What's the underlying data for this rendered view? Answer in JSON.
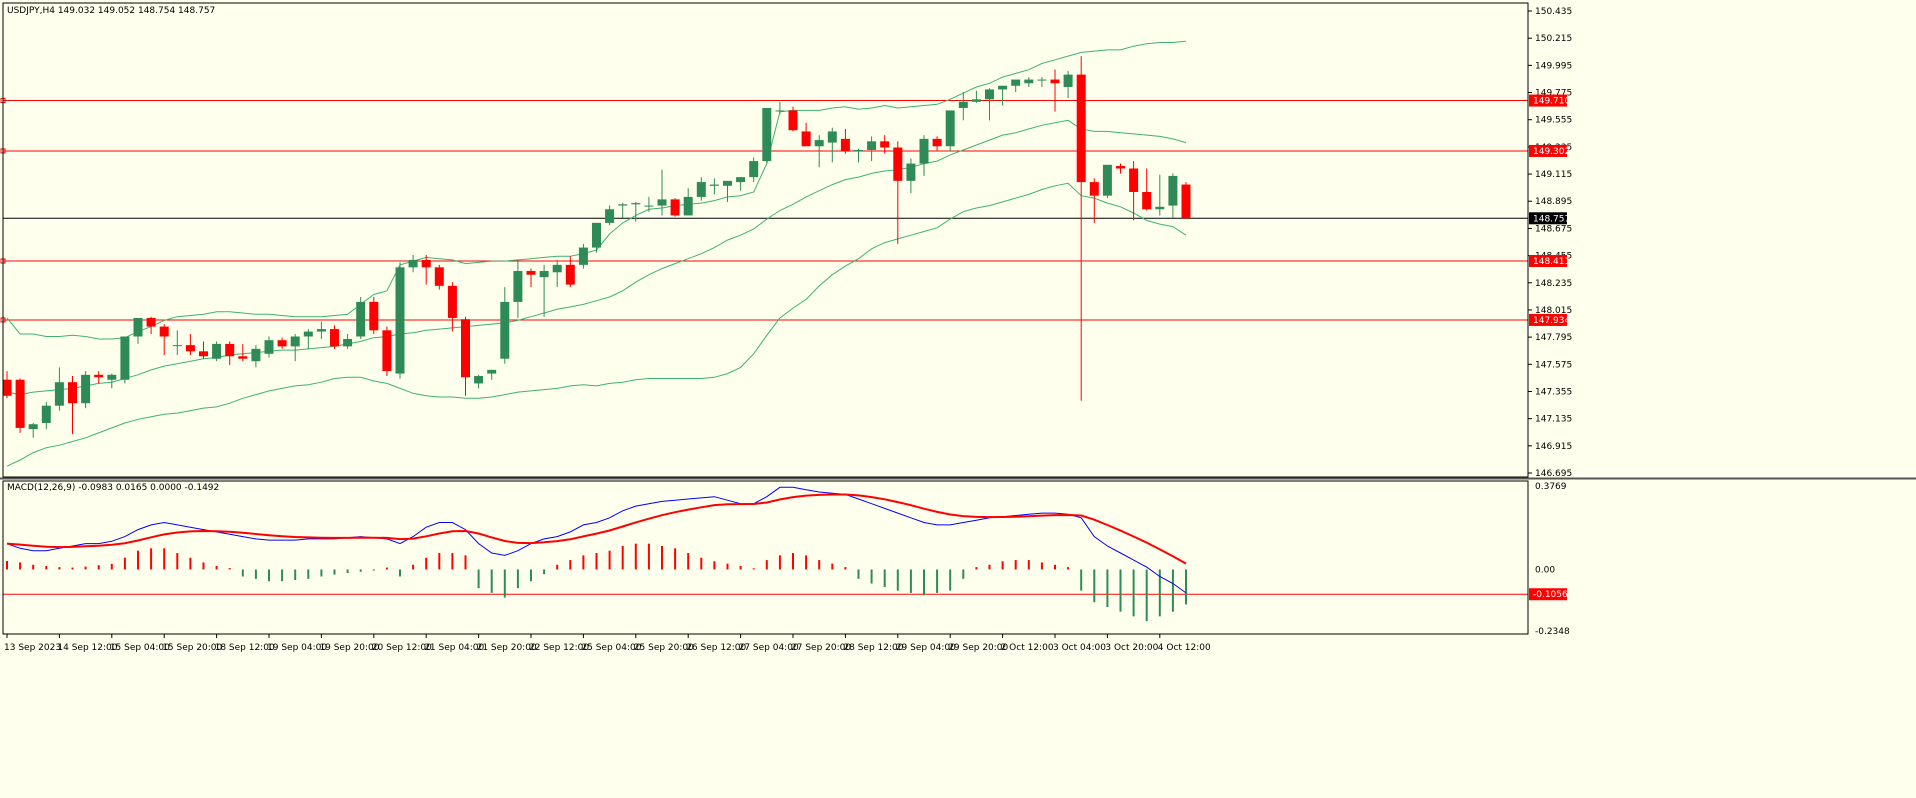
{
  "colors": {
    "background": "#ffffee",
    "axis": "#000000",
    "grid_text": "#000000",
    "bull": "#2e8b57",
    "bear": "#ff0000",
    "bands": "#3cb371",
    "level_line": "#ff0000",
    "price_line": "#000000",
    "macd_line": "#0000ff",
    "signal_line": "#ff0000",
    "label_bg": "#ff0000",
    "price_label_bg": "#000000",
    "label_text": "#ffffff"
  },
  "chart_data": [
    {
      "type": "candlestick",
      "title": "USDJPY,H4  149.032 149.052 148.754 148.757",
      "ylim": [
        146.695,
        150.435
      ],
      "y_ticks": [
        150.435,
        150.215,
        149.995,
        149.775,
        149.555,
        149.335,
        149.115,
        148.895,
        148.675,
        148.455,
        148.235,
        148.015,
        147.795,
        147.575,
        147.355,
        147.135,
        146.915,
        146.695
      ],
      "y_tick_labels": [
        "150.435",
        "150.215",
        "149.995",
        "149.775",
        "149.555",
        "149.335",
        "149.115",
        "148.895",
        "148.675",
        "148.455",
        "148.235",
        "148.015",
        "147.795",
        "147.575",
        "147.355",
        "147.135",
        "146.915",
        "146.695"
      ],
      "horizontal_levels": [
        {
          "label": "149.710",
          "value": 149.71
        },
        {
          "label": "149.302",
          "value": 149.302
        },
        {
          "label": "148.411",
          "value": 148.411
        },
        {
          "label": "147.934",
          "value": 147.934
        }
      ],
      "current_price": {
        "label": "148.757",
        "value": 148.757
      },
      "x_labels": [
        "13 Sep 2023",
        "14 Sep 12:00",
        "15 Sep 04:00",
        "15 Sep 20:00",
        "18 Sep 12:00",
        "19 Sep 04:00",
        "19 Sep 20:00",
        "20 Sep 12:00",
        "21 Sep 04:00",
        "21 Sep 20:00",
        "22 Sep 12:00",
        "25 Sep 04:00",
        "25 Sep 20:00",
        "26 Sep 12:00",
        "27 Sep 04:00",
        "27 Sep 20:00",
        "28 Sep 12:00",
        "29 Sep 04:00",
        "29 Sep 20:00",
        "2 Oct 12:00",
        "3 Oct 04:00",
        "3 Oct 20:00",
        "4 Oct 12:00"
      ],
      "candles": [
        [
          147.45,
          147.52,
          147.3,
          147.32
        ],
        [
          147.45,
          147.46,
          147.02,
          147.06
        ],
        [
          147.05,
          147.1,
          146.98,
          147.09
        ],
        [
          147.1,
          147.27,
          147.05,
          147.24
        ],
        [
          147.24,
          147.55,
          147.2,
          147.43
        ],
        [
          147.43,
          147.48,
          147.01,
          147.26
        ],
        [
          147.26,
          147.52,
          147.22,
          147.49
        ],
        [
          147.49,
          147.52,
          147.42,
          147.47
        ],
        [
          147.45,
          147.5,
          147.38,
          147.49
        ],
        [
          147.45,
          147.8,
          147.42,
          147.8
        ],
        [
          147.8,
          147.95,
          147.74,
          147.95
        ],
        [
          147.95,
          147.96,
          147.82,
          147.88
        ],
        [
          147.88,
          147.9,
          147.65,
          147.8
        ],
        [
          147.73,
          147.85,
          147.65,
          147.73
        ],
        [
          147.73,
          147.82,
          147.65,
          147.68
        ],
        [
          147.68,
          147.76,
          147.62,
          147.64
        ],
        [
          147.62,
          147.76,
          147.6,
          147.74
        ],
        [
          147.74,
          147.76,
          147.57,
          147.64
        ],
        [
          147.64,
          147.74,
          147.6,
          147.62
        ],
        [
          147.6,
          147.73,
          147.55,
          147.7
        ],
        [
          147.66,
          147.8,
          147.63,
          147.77
        ],
        [
          147.77,
          147.79,
          147.7,
          147.72
        ],
        [
          147.72,
          147.82,
          147.6,
          147.8
        ],
        [
          147.8,
          147.86,
          147.7,
          147.84
        ],
        [
          147.84,
          147.92,
          147.78,
          147.86
        ],
        [
          147.86,
          147.89,
          147.7,
          147.72
        ],
        [
          147.72,
          147.82,
          147.7,
          147.78
        ],
        [
          147.8,
          148.12,
          147.78,
          148.08
        ],
        [
          148.08,
          148.12,
          147.82,
          147.85
        ],
        [
          147.85,
          147.88,
          147.48,
          147.52
        ],
        [
          147.5,
          148.4,
          147.46,
          148.36
        ],
        [
          148.36,
          148.46,
          148.32,
          148.42
        ],
        [
          148.42,
          148.46,
          148.22,
          148.36
        ],
        [
          148.36,
          148.38,
          148.18,
          148.21
        ],
        [
          148.21,
          148.24,
          147.84,
          147.95
        ],
        [
          147.94,
          147.96,
          147.32,
          147.47
        ],
        [
          147.42,
          147.49,
          147.38,
          147.48
        ],
        [
          147.5,
          147.53,
          147.45,
          147.53
        ],
        [
          147.62,
          148.2,
          147.58,
          148.08
        ],
        [
          148.08,
          148.41,
          147.95,
          148.33
        ],
        [
          148.33,
          148.35,
          148.2,
          148.3
        ],
        [
          148.28,
          148.38,
          147.96,
          148.33
        ],
        [
          148.32,
          148.42,
          148.2,
          148.38
        ],
        [
          148.38,
          148.45,
          148.2,
          148.22
        ],
        [
          148.38,
          148.55,
          148.35,
          148.52
        ],
        [
          148.52,
          148.72,
          148.48,
          148.72
        ],
        [
          148.72,
          148.86,
          148.7,
          148.83
        ],
        [
          148.86,
          148.88,
          148.76,
          148.87
        ],
        [
          148.87,
          148.89,
          148.73,
          148.88
        ],
        [
          148.86,
          148.93,
          148.81,
          148.86
        ],
        [
          148.86,
          149.15,
          148.78,
          148.91
        ],
        [
          148.91,
          148.92,
          148.77,
          148.78
        ],
        [
          148.78,
          149.0,
          148.78,
          148.93
        ],
        [
          148.93,
          149.09,
          148.9,
          149.05
        ],
        [
          149.02,
          149.08,
          148.95,
          149.03
        ],
        [
          149.02,
          149.06,
          148.89,
          149.06
        ],
        [
          149.05,
          149.09,
          148.98,
          149.09
        ],
        [
          149.09,
          149.25,
          149.05,
          149.22
        ],
        [
          149.22,
          149.65,
          149.2,
          149.65
        ],
        [
          149.63,
          149.7,
          149.6,
          149.63
        ],
        [
          149.63,
          149.66,
          149.46,
          149.47
        ],
        [
          149.46,
          149.53,
          149.36,
          149.34
        ],
        [
          149.34,
          149.43,
          149.17,
          149.39
        ],
        [
          149.37,
          149.49,
          149.21,
          149.46
        ],
        [
          149.4,
          149.48,
          149.28,
          149.3
        ],
        [
          149.3,
          149.32,
          149.21,
          149.31
        ],
        [
          149.31,
          149.42,
          149.22,
          149.38
        ],
        [
          149.38,
          149.43,
          149.28,
          149.33
        ],
        [
          149.33,
          149.38,
          148.55,
          149.06
        ],
        [
          149.06,
          149.24,
          148.96,
          149.2
        ],
        [
          149.2,
          149.43,
          149.1,
          149.4
        ],
        [
          149.4,
          149.42,
          149.3,
          149.34
        ],
        [
          149.34,
          149.6,
          149.3,
          149.63
        ],
        [
          149.65,
          149.78,
          149.55,
          149.7
        ],
        [
          149.7,
          149.79,
          149.69,
          149.72
        ],
        [
          149.72,
          149.81,
          149.55,
          149.8
        ],
        [
          149.8,
          149.82,
          149.67,
          149.83
        ],
        [
          149.83,
          149.86,
          149.78,
          149.88
        ],
        [
          149.85,
          149.9,
          149.82,
          149.88
        ],
        [
          149.88,
          149.9,
          149.82,
          149.88
        ],
        [
          149.88,
          149.96,
          149.62,
          149.85
        ],
        [
          149.82,
          149.95,
          149.73,
          149.92
        ],
        [
          149.92,
          150.07,
          147.28,
          149.05
        ],
        [
          149.05,
          149.08,
          148.72,
          148.94
        ],
        [
          148.94,
          149.18,
          148.92,
          149.19
        ],
        [
          149.18,
          149.2,
          149.12,
          149.16
        ],
        [
          149.16,
          149.22,
          148.74,
          148.97
        ],
        [
          148.97,
          149.16,
          148.82,
          148.83
        ],
        [
          148.83,
          149.11,
          148.78,
          148.85
        ],
        [
          148.86,
          149.12,
          148.76,
          149.1
        ],
        [
          149.03,
          149.05,
          148.75,
          148.757
        ]
      ],
      "bollinger": {
        "upper": [
          147.95,
          147.82,
          147.82,
          147.8,
          147.8,
          147.81,
          147.8,
          147.78,
          147.78,
          147.79,
          147.84,
          147.88,
          147.93,
          147.96,
          147.97,
          147.98,
          148.0,
          148.0,
          147.99,
          147.98,
          147.98,
          147.97,
          147.96,
          147.96,
          147.96,
          147.97,
          147.98,
          148.06,
          148.14,
          148.17,
          148.38,
          148.41,
          148.44,
          148.43,
          148.42,
          148.39,
          148.4,
          148.41,
          148.41,
          148.42,
          148.43,
          148.44,
          148.45,
          148.45,
          148.47,
          148.5,
          148.63,
          148.72,
          148.78,
          148.83,
          148.84,
          148.86,
          148.87,
          148.88,
          148.9,
          148.93,
          148.94,
          148.97,
          149.2,
          149.62,
          149.63,
          149.63,
          149.63,
          149.65,
          149.66,
          149.64,
          149.65,
          149.67,
          149.65,
          149.66,
          149.67,
          149.68,
          149.72,
          149.77,
          149.82,
          149.85,
          149.9,
          149.93,
          149.96,
          150.01,
          150.04,
          150.07,
          150.1,
          150.11,
          150.12,
          150.12,
          150.15,
          150.17,
          150.18,
          150.18,
          150.19
        ],
        "middle": [
          147.35,
          147.33,
          147.35,
          147.36,
          147.37,
          147.38,
          147.4,
          147.42,
          147.43,
          147.46,
          147.49,
          147.53,
          147.56,
          147.58,
          147.6,
          147.62,
          147.63,
          147.65,
          147.66,
          147.67,
          147.68,
          147.69,
          147.69,
          147.7,
          147.71,
          147.72,
          147.74,
          147.76,
          147.79,
          147.8,
          147.82,
          147.83,
          147.85,
          147.86,
          147.87,
          147.88,
          147.89,
          147.9,
          147.91,
          147.93,
          147.96,
          147.99,
          148.02,
          148.04,
          148.06,
          148.09,
          148.12,
          148.17,
          148.24,
          148.3,
          148.35,
          148.39,
          148.43,
          148.47,
          148.52,
          148.58,
          148.62,
          148.67,
          148.75,
          148.82,
          148.87,
          148.93,
          148.98,
          149.03,
          149.07,
          149.09,
          149.12,
          149.14,
          149.15,
          149.17,
          149.2,
          149.22,
          149.27,
          149.31,
          149.35,
          149.39,
          149.43,
          149.45,
          149.48,
          149.51,
          149.53,
          149.55,
          149.48,
          149.46,
          149.46,
          149.45,
          149.44,
          149.43,
          149.42,
          149.4,
          149.37
        ],
        "lower": [
          146.75,
          146.8,
          146.86,
          146.9,
          146.92,
          146.95,
          146.98,
          147.02,
          147.06,
          147.1,
          147.13,
          147.15,
          147.17,
          147.18,
          147.2,
          147.22,
          147.23,
          147.26,
          147.3,
          147.33,
          147.36,
          147.38,
          147.4,
          147.41,
          147.43,
          147.46,
          147.47,
          147.47,
          147.44,
          147.42,
          147.38,
          147.34,
          147.32,
          147.31,
          147.31,
          147.3,
          147.3,
          147.31,
          147.33,
          147.35,
          147.36,
          147.37,
          147.38,
          147.4,
          147.41,
          147.4,
          147.42,
          147.43,
          147.45,
          147.46,
          147.46,
          147.46,
          147.46,
          147.46,
          147.47,
          147.5,
          147.55,
          147.66,
          147.81,
          147.95,
          148.03,
          148.1,
          148.21,
          148.3,
          148.37,
          148.43,
          148.51,
          148.56,
          148.59,
          148.62,
          148.65,
          148.68,
          148.75,
          148.81,
          148.84,
          148.86,
          148.89,
          148.92,
          148.95,
          148.99,
          149.02,
          149.04,
          148.94,
          148.92,
          148.88,
          148.85,
          148.8,
          148.74,
          148.71,
          148.69,
          148.62
        ]
      }
    },
    {
      "type": "macd",
      "title": "MACD(12,26,9) -0.0983 0.0165 0.0000 -0.1492",
      "ylim": [
        -0.275,
        0.3769
      ],
      "y_ticks": [
        0.3769,
        0.0,
        -0.2348
      ],
      "y_tick_labels": [
        "0.3769",
        "0.00",
        "-0.2348"
      ],
      "level": {
        "label": "-0.1056",
        "value": -0.1056
      },
      "histogram": [
        0.036,
        0.03,
        0.02,
        0.015,
        0.01,
        0.008,
        0.012,
        0.018,
        0.024,
        0.05,
        0.08,
        0.09,
        0.09,
        0.07,
        0.05,
        0.03,
        0.015,
        0.006,
        -0.03,
        -0.04,
        -0.05,
        -0.05,
        -0.045,
        -0.04,
        -0.03,
        -0.022,
        -0.015,
        -0.01,
        -0.005,
        0.008,
        -0.03,
        0.02,
        0.05,
        0.07,
        0.07,
        0.06,
        -0.08,
        -0.1,
        -0.12,
        -0.08,
        -0.05,
        -0.02,
        0.02,
        0.04,
        0.06,
        0.07,
        0.08,
        0.1,
        0.11,
        0.11,
        0.1,
        0.09,
        0.07,
        0.05,
        0.035,
        0.025,
        0.015,
        0.005,
        0.04,
        0.06,
        0.07,
        0.06,
        0.04,
        0.025,
        0.01,
        -0.04,
        -0.06,
        -0.075,
        -0.09,
        -0.1,
        -0.11,
        -0.1,
        -0.09,
        -0.04,
        0.01,
        0.02,
        0.035,
        0.04,
        0.04,
        0.03,
        0.02,
        0.01,
        -0.09,
        -0.14,
        -0.16,
        -0.18,
        -0.2,
        -0.22,
        -0.2,
        -0.18,
        -0.149
      ],
      "macd": [
        0.11,
        0.09,
        0.08,
        0.08,
        0.09,
        0.1,
        0.11,
        0.11,
        0.12,
        0.14,
        0.17,
        0.19,
        0.2,
        0.19,
        0.18,
        0.17,
        0.16,
        0.15,
        0.14,
        0.13,
        0.125,
        0.125,
        0.125,
        0.13,
        0.13,
        0.13,
        0.135,
        0.14,
        0.135,
        0.13,
        0.11,
        0.14,
        0.18,
        0.2,
        0.2,
        0.17,
        0.11,
        0.07,
        0.06,
        0.08,
        0.11,
        0.13,
        0.14,
        0.16,
        0.19,
        0.2,
        0.22,
        0.25,
        0.27,
        0.28,
        0.29,
        0.295,
        0.3,
        0.305,
        0.31,
        0.295,
        0.28,
        0.28,
        0.31,
        0.35,
        0.35,
        0.34,
        0.33,
        0.325,
        0.32,
        0.3,
        0.28,
        0.26,
        0.24,
        0.22,
        0.2,
        0.19,
        0.19,
        0.2,
        0.21,
        0.22,
        0.225,
        0.23,
        0.235,
        0.24,
        0.24,
        0.235,
        0.22,
        0.14,
        0.1,
        0.07,
        0.04,
        0.01,
        -0.03,
        -0.06,
        -0.1
      ]
    }
  ]
}
